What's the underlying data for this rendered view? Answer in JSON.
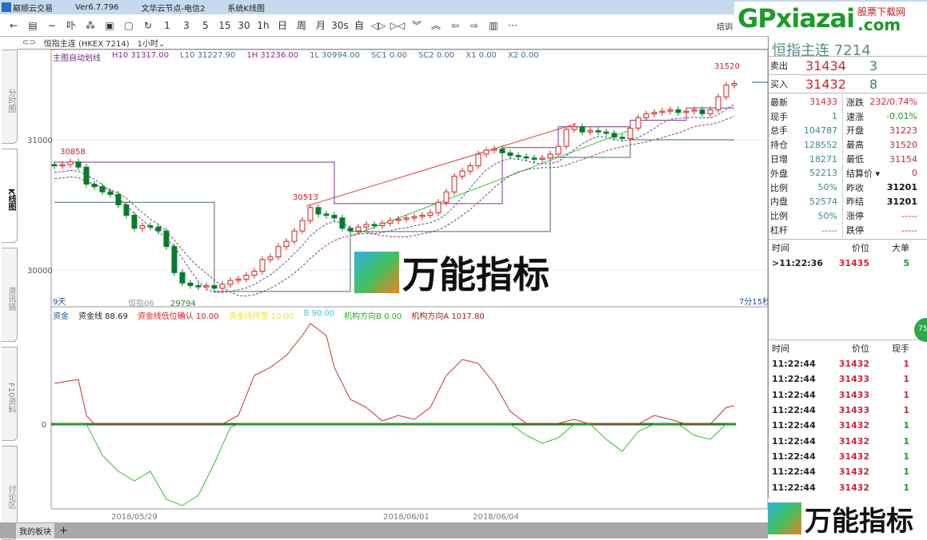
{
  "titlebar": {
    "app": "巅顺云交易",
    "version": "Ver6.7.796",
    "node": "文华云节点-电信2",
    "view": "系统K线图"
  },
  "toolbar": {
    "buttons": [
      "←",
      "▤",
      "∼",
      "卟",
      "⁂",
      "▣",
      "▢",
      "↻",
      "1",
      "3",
      "5",
      "15",
      "30",
      "1h",
      "日",
      "周",
      "月",
      "30s",
      "自",
      "◁▷",
      "▷◁",
      "︾",
      "︽",
      "⇦",
      "⇨",
      "▥",
      "···"
    ],
    "right_label": "培训"
  },
  "tabrow": {
    "symbol": "恒指主连 (HKEX 7214)",
    "period": "1小时"
  },
  "left_tabs": [
    "分时图",
    "K线图",
    "资讯链",
    "F10资料",
    "讨论区"
  ],
  "main_legend": {
    "title": "主图自动划线",
    "items": [
      {
        "label": "H10 31317.00",
        "color": "#8b2a8b"
      },
      {
        "label": "L10 31227.90",
        "color": "#4a6a8a"
      },
      {
        "label": "1H 31236.00",
        "color": "#8b2a8b"
      },
      {
        "label": "1L 30994.00",
        "color": "#4a6a8a"
      },
      {
        "label": "SC1 0.00",
        "color": "#4a6a8a"
      },
      {
        "label": "SC2 0.00",
        "color": "#4a6a8a"
      },
      {
        "label": "X1 0.00",
        "color": "#4a6a8a"
      },
      {
        "label": "X2 0.00",
        "color": "#4a6a8a"
      }
    ]
  },
  "sub_legend": {
    "title": "资金",
    "items": [
      {
        "label": "资金线 88.69",
        "color": "#222"
      },
      {
        "label": "资金线低位确认 10.00",
        "color": "#d02020"
      },
      {
        "label": "资金线持警 10.00",
        "color": "#f0e040"
      },
      {
        "label": "B 90.00",
        "color": "#40c0e0"
      },
      {
        "label": "机构方向B 0.00",
        "color": "#20b020"
      },
      {
        "label": "机构方向A 1017.80",
        "color": "#b02020"
      }
    ]
  },
  "chart_labels": {
    "high_mark": "30858",
    "mid_mark": "30513",
    "low_mark": "29794",
    "top_mark": "31520",
    "contract": "恒指06",
    "days": "9天",
    "countdown": "7分15秒",
    "zero": "0"
  },
  "chart_data": {
    "type": "candlestick",
    "yticks": [
      31000,
      30000
    ],
    "xticks": [
      "2018/05/29",
      "2018/06/01",
      "2018/06/04"
    ],
    "closes": [
      30800,
      30810,
      30830,
      30790,
      30660,
      30640,
      30600,
      30580,
      30500,
      30420,
      30320,
      30340,
      30330,
      30300,
      30180,
      29980,
      29900,
      29880,
      29870,
      29880,
      29860,
      29890,
      29920,
      29930,
      29960,
      29990,
      30080,
      30100,
      30180,
      30220,
      30300,
      30380,
      30480,
      30430,
      30420,
      30400,
      30320,
      30300,
      30330,
      30350,
      30340,
      30360,
      30380,
      30390,
      30400,
      30410,
      30420,
      30440,
      30520,
      30600,
      30720,
      30760,
      30800,
      30890,
      30920,
      30930,
      30900,
      30880,
      30870,
      30860,
      30850,
      30860,
      30890,
      30950,
      31080,
      31100,
      31060,
      31070,
      31060,
      31050,
      31020,
      31010,
      31090,
      31170,
      31200,
      31210,
      31220,
      31230,
      31210,
      31220,
      31230,
      31200,
      31230,
      31330,
      31420,
      31433
    ],
    "upper_band": [
      [
        0,
        30828
      ],
      [
        4,
        30828
      ],
      [
        35,
        30828
      ],
      [
        35,
        30510
      ],
      [
        56,
        30510
      ],
      [
        56,
        30940
      ],
      [
        63,
        30940
      ],
      [
        63,
        31100
      ],
      [
        72,
        31100
      ],
      [
        72,
        31150
      ],
      [
        79,
        31150
      ],
      [
        79,
        31245
      ],
      [
        85,
        31245
      ]
    ],
    "lower_band": [
      [
        0,
        30520
      ],
      [
        20,
        30520
      ],
      [
        20,
        29835
      ],
      [
        37,
        29835
      ],
      [
        37,
        30295
      ],
      [
        62,
        30295
      ],
      [
        62,
        30865
      ],
      [
        72,
        30865
      ],
      [
        72,
        31000
      ],
      [
        85,
        31000
      ]
    ],
    "sub_series": [
      {
        "name": "机构方向A",
        "color": "#c83030",
        "points": [
          [
            0,
            2040
          ],
          [
            3,
            2240
          ],
          [
            4,
            440
          ],
          [
            5,
            0
          ],
          [
            21,
            0
          ],
          [
            23,
            440
          ],
          [
            25,
            2440
          ],
          [
            27,
            2840
          ],
          [
            29,
            3440
          ],
          [
            31,
            4440
          ],
          [
            32,
            5040
          ],
          [
            34,
            4440
          ],
          [
            35,
            2840
          ],
          [
            37,
            1240
          ],
          [
            39,
            840
          ],
          [
            41,
            160
          ],
          [
            43,
            440
          ],
          [
            45,
            240
          ],
          [
            47,
            840
          ],
          [
            49,
            2440
          ],
          [
            51,
            3240
          ],
          [
            53,
            3040
          ],
          [
            55,
            2040
          ],
          [
            57,
            640
          ],
          [
            59,
            40
          ],
          [
            63,
            40
          ],
          [
            65,
            240
          ],
          [
            67,
            0
          ],
          [
            73,
            0
          ],
          [
            75,
            440
          ],
          [
            77,
            240
          ],
          [
            79,
            0
          ],
          [
            82,
            0
          ],
          [
            84,
            840
          ],
          [
            85,
            920
          ]
        ]
      },
      {
        "name": "机构方向B",
        "color": "#30c030",
        "points": [
          [
            0,
            0
          ],
          [
            4,
            0
          ],
          [
            6,
            -1560
          ],
          [
            8,
            -2360
          ],
          [
            10,
            -2840
          ],
          [
            12,
            -2360
          ],
          [
            14,
            -3760
          ],
          [
            16,
            -4080
          ],
          [
            18,
            -3560
          ],
          [
            20,
            -1960
          ],
          [
            22,
            -160
          ],
          [
            23,
            0
          ],
          [
            57,
            0
          ],
          [
            59,
            -560
          ],
          [
            61,
            -960
          ],
          [
            63,
            -680
          ],
          [
            65,
            0
          ],
          [
            67,
            0
          ],
          [
            69,
            -760
          ],
          [
            71,
            -1360
          ],
          [
            73,
            -360
          ],
          [
            75,
            0
          ],
          [
            78,
            0
          ],
          [
            80,
            -560
          ],
          [
            82,
            -760
          ],
          [
            84,
            0
          ],
          [
            85,
            0
          ]
        ]
      }
    ]
  },
  "quote": {
    "title": "恒指主连",
    "code": "7214",
    "ask": {
      "label": "卖出",
      "price": "31434",
      "qty": "3"
    },
    "bid": {
      "label": "买入",
      "price": "31432",
      "qty": "8"
    },
    "left": [
      {
        "k": "最新",
        "v": "31433",
        "c": "red"
      },
      {
        "k": "现手",
        "v": "1",
        "c": "teal"
      },
      {
        "k": "总手",
        "v": "104787",
        "c": "teal"
      },
      {
        "k": "持仓",
        "v": "128552",
        "c": "teal"
      },
      {
        "k": "日增",
        "v": "18271",
        "c": "teal"
      },
      {
        "k": "外盘",
        "v": "52213",
        "c": "teal"
      },
      {
        "k": "比例",
        "v": "50%",
        "c": "teal"
      },
      {
        "k": "内盘",
        "v": "52574",
        "c": "teal"
      },
      {
        "k": "比例",
        "v": "50%",
        "c": "teal"
      },
      {
        "k": "杠杆",
        "v": "-----",
        "c": "teal"
      }
    ],
    "right": [
      {
        "k": "涨跌",
        "v": "232/0.74%",
        "c": "red"
      },
      {
        "k": "速涨",
        "v": "-0.01%",
        "c": "green"
      },
      {
        "k": "开盘",
        "v": "31223",
        "c": "red"
      },
      {
        "k": "最高",
        "v": "31520",
        "c": "red"
      },
      {
        "k": "最低",
        "v": "31154",
        "c": "red"
      },
      {
        "k": "结算价 ▾",
        "v": "0",
        "c": "red"
      },
      {
        "k": "昨收",
        "v": "31201",
        "c": "black"
      },
      {
        "k": "昨结",
        "v": "31201",
        "c": "black"
      },
      {
        "k": "涨停",
        "v": "-----",
        "c": "red"
      },
      {
        "k": "跌停",
        "v": "-----",
        "c": "red"
      }
    ]
  },
  "big_orders": {
    "headers": [
      "时间",
      "价位",
      "大单"
    ],
    "rows": [
      {
        "t": ">11:22:36",
        "p": "31435",
        "q": "5"
      }
    ]
  },
  "ticks": {
    "headers": [
      "时间",
      "价位",
      "现手"
    ],
    "rows": [
      {
        "t": "11:22:44",
        "p": "31432",
        "q": "1",
        "c": "red"
      },
      {
        "t": "11:22:44",
        "p": "31433",
        "q": "1",
        "c": "red"
      },
      {
        "t": "11:22:44",
        "p": "31433",
        "q": "1",
        "c": "red"
      },
      {
        "t": "11:22:44",
        "p": "31433",
        "q": "1",
        "c": "red"
      },
      {
        "t": "11:22:44",
        "p": "31432",
        "q": "1",
        "c": "green"
      },
      {
        "t": "11:22:44",
        "p": "31432",
        "q": "1",
        "c": "green"
      },
      {
        "t": "11:22:44",
        "p": "31432",
        "q": "1",
        "c": "green"
      },
      {
        "t": "11:22:44",
        "p": "31432",
        "q": "1",
        "c": "green"
      },
      {
        "t": "11:22:44",
        "p": "31432",
        "q": "1",
        "c": "green"
      }
    ]
  },
  "bottombar": {
    "tab": "我的板块",
    "add": "+"
  },
  "watermarks": {
    "site": "GPxiazai",
    "site_suffix": ".com",
    "site_sub": "股票下载网",
    "logo": "万能指标",
    "badge": "75"
  },
  "colors": {
    "up": "#d02020",
    "down": "#0a7a2a",
    "accent": "#d2232a"
  }
}
